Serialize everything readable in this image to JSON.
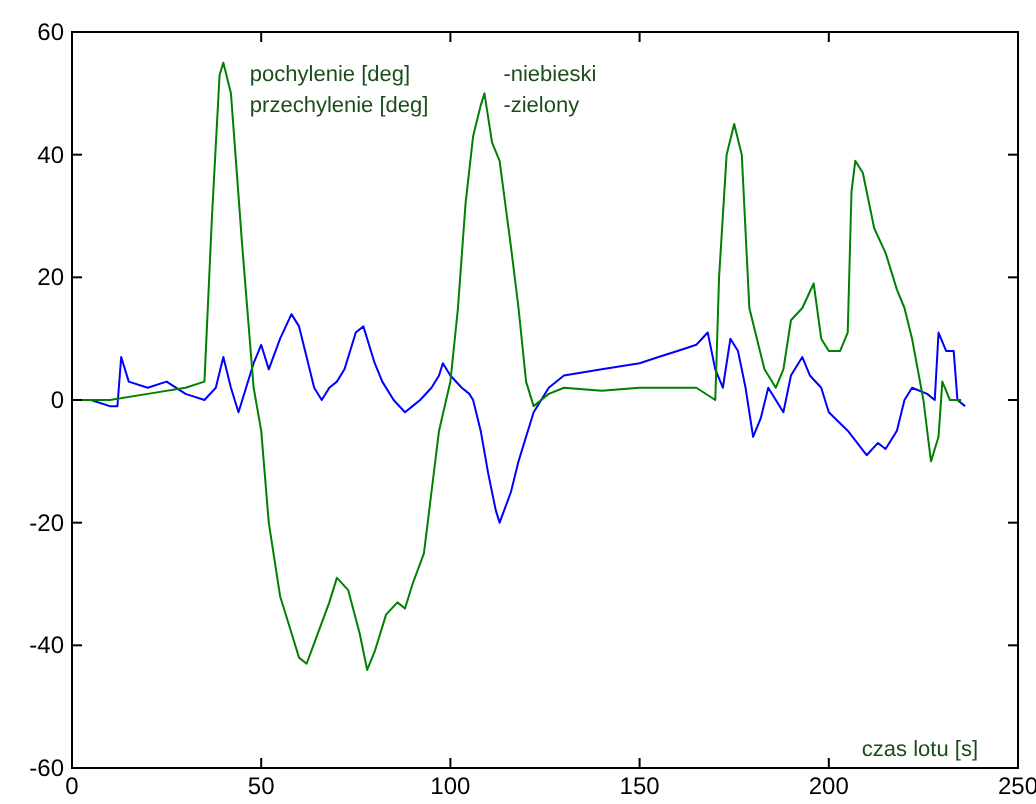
{
  "chart_data": {
    "type": "line",
    "xlabel": "czas lotu [s]",
    "xlim": [
      0,
      250
    ],
    "xticks": [
      0,
      50,
      100,
      150,
      200,
      250
    ],
    "ylim": [
      -60,
      60
    ],
    "yticks": [
      -60,
      -40,
      -20,
      0,
      20,
      40,
      60
    ],
    "grid": false,
    "marker": "none",
    "line_style": "solid",
    "annotations": [
      "pochylenie [deg]",
      "przechylenie [deg]",
      "-niebieski",
      "-zielony"
    ],
    "series": [
      {
        "color": "#0000ff",
        "x": [
          0,
          5,
          10,
          12,
          13,
          15,
          20,
          25,
          30,
          35,
          38,
          40,
          42,
          44,
          46,
          48,
          50,
          52,
          55,
          58,
          60,
          62,
          64,
          66,
          68,
          70,
          72,
          75,
          77,
          80,
          82,
          85,
          88,
          90,
          92,
          95,
          97,
          98,
          100,
          103,
          105,
          106,
          108,
          110,
          112,
          113,
          116,
          118,
          120,
          122,
          124,
          126,
          130,
          140,
          150,
          155,
          160,
          165,
          168,
          170,
          172,
          174,
          176,
          178,
          180,
          182,
          184,
          186,
          188,
          190,
          193,
          195,
          198,
          200,
          205,
          210,
          213,
          215,
          218,
          220,
          222,
          226,
          228,
          229,
          231,
          233,
          234,
          236
        ],
        "values": [
          0,
          0,
          -1,
          -1,
          7,
          3,
          2,
          3,
          1,
          0,
          2,
          7,
          2,
          -2,
          2,
          6,
          9,
          5,
          10,
          14,
          12,
          7,
          2,
          0,
          2,
          3,
          5,
          11,
          12,
          6,
          3,
          0,
          -2,
          -1,
          0,
          2,
          4,
          6,
          4,
          2,
          1,
          0,
          -5,
          -12,
          -18,
          -20,
          -15,
          -10,
          -6,
          -2,
          0,
          2,
          4,
          5,
          6,
          7,
          8,
          9,
          11,
          5,
          2,
          10,
          8,
          2,
          -6,
          -3,
          2,
          0,
          -2,
          4,
          7,
          4,
          2,
          -2,
          -5,
          -9,
          -7,
          -8,
          -5,
          0,
          2,
          1,
          0,
          11,
          8,
          8,
          0,
          -1
        ]
      },
      {
        "color": "#008000",
        "x": [
          0,
          10,
          20,
          30,
          35,
          37,
          39,
          40,
          42,
          45,
          48,
          50,
          52,
          55,
          58,
          60,
          62,
          65,
          68,
          70,
          73,
          76,
          78,
          80,
          83,
          86,
          88,
          90,
          93,
          95,
          97,
          100,
          102,
          104,
          106,
          108,
          109,
          111,
          113,
          116,
          118,
          120,
          122,
          124,
          126,
          130,
          140,
          150,
          160,
          165,
          170,
          171,
          173,
          175,
          177,
          179,
          181,
          183,
          186,
          188,
          190,
          193,
          196,
          198,
          200,
          203,
          205,
          206,
          207,
          209,
          212,
          215,
          218,
          220,
          222,
          225,
          227,
          229,
          230,
          232,
          235
        ],
        "values": [
          0,
          0,
          1,
          2,
          3,
          30,
          53,
          55,
          50,
          25,
          2,
          -5,
          -20,
          -32,
          -38,
          -42,
          -43,
          -38,
          -33,
          -29,
          -31,
          -38,
          -44,
          -41,
          -35,
          -33,
          -34,
          -30,
          -25,
          -15,
          -5,
          3,
          15,
          32,
          43,
          48,
          50,
          42,
          39,
          25,
          15,
          3,
          -1,
          0,
          1,
          2,
          1.5,
          2,
          2,
          2,
          0,
          20,
          40,
          45,
          40,
          15,
          10,
          5,
          2,
          5,
          13,
          15,
          19,
          10,
          8,
          8,
          11,
          34,
          39,
          37,
          28,
          24,
          18,
          15,
          10,
          0,
          -10,
          -6,
          3,
          0,
          0
        ]
      }
    ]
  }
}
